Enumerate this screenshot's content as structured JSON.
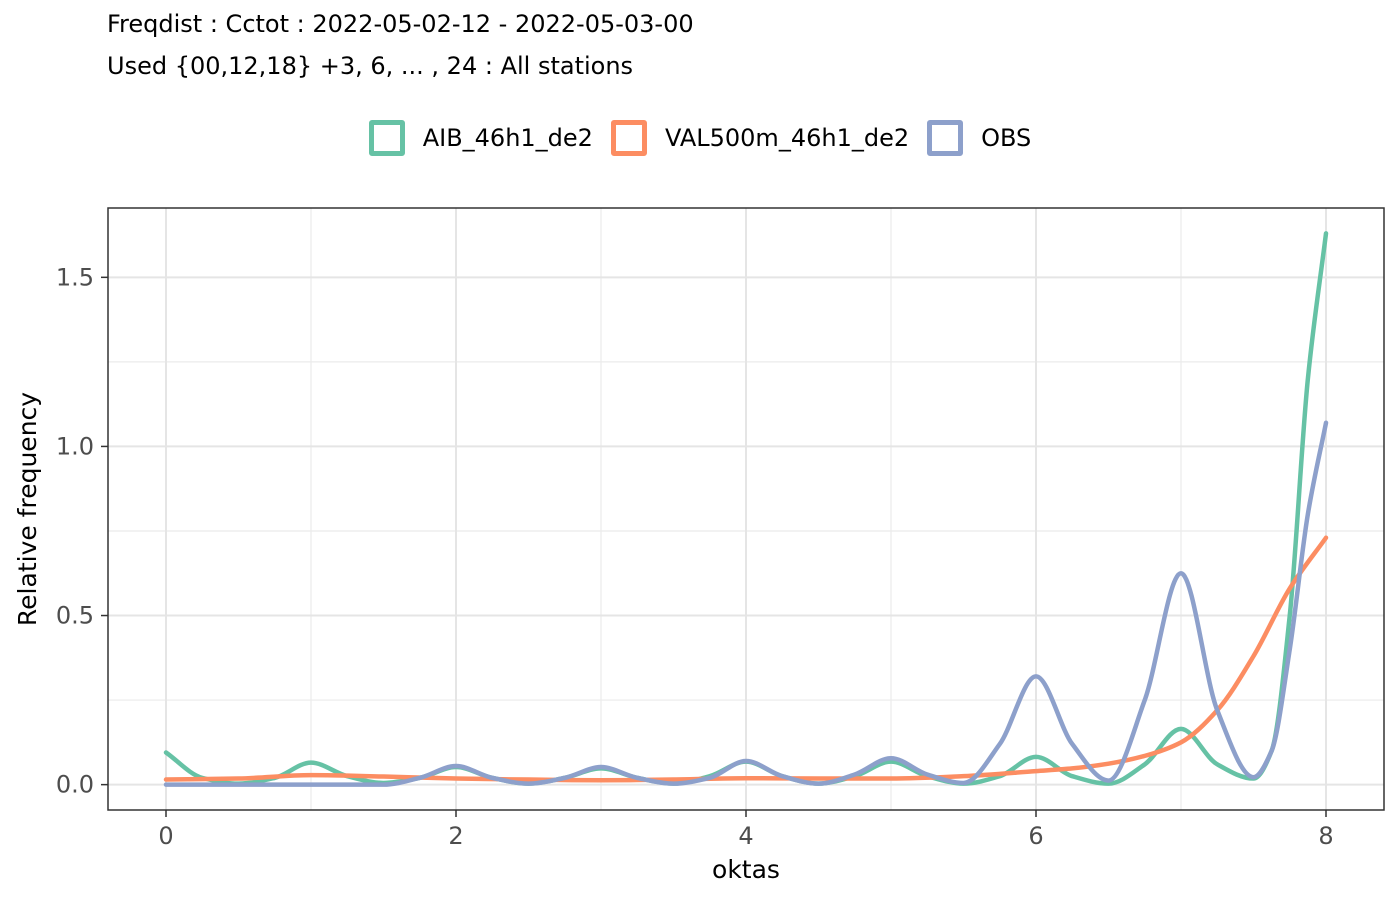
{
  "chart_data": {
    "type": "line",
    "title": "Freqdist : Cctot : 2022-05-02-12 - 2022-05-03-00",
    "subtitle": "Used {00,12,18} +3, 6, ... , 24 : All stations",
    "xlabel": "oktas",
    "ylabel": "Relative frequency",
    "xlim": [
      -0.4,
      8.4
    ],
    "ylim": [
      -0.075,
      1.705
    ],
    "xticks": [
      0,
      2,
      4,
      6,
      8
    ],
    "xtick_labels": [
      "0",
      "2",
      "4",
      "6",
      "8"
    ],
    "yticks": [
      0.0,
      0.5,
      1.0,
      1.5
    ],
    "ytick_labels": [
      "0.0",
      "0.5",
      "1.0",
      "1.5"
    ],
    "grid": true,
    "legend_position": "top",
    "series": [
      {
        "name": "AIB_46h1_de2",
        "color": "#66c2a5",
        "x": [
          0,
          0.25,
          0.5,
          0.75,
          1,
          1.25,
          1.5,
          1.75,
          2,
          2.25,
          2.5,
          2.75,
          3,
          3.25,
          3.5,
          3.75,
          4,
          4.25,
          4.5,
          4.75,
          5,
          5.25,
          5.5,
          5.75,
          6,
          6.25,
          6.5,
          6.75,
          7,
          7.25,
          7.5,
          7.625,
          7.75,
          7.875,
          8
        ],
        "y": [
          0.095,
          0.02,
          0.003,
          0.02,
          0.065,
          0.025,
          0.005,
          0.02,
          0.052,
          0.02,
          0.003,
          0.02,
          0.048,
          0.02,
          0.003,
          0.025,
          0.068,
          0.025,
          0.003,
          0.025,
          0.068,
          0.025,
          0.003,
          0.025,
          0.082,
          0.025,
          0.003,
          0.06,
          0.165,
          0.06,
          0.018,
          0.1,
          0.5,
          1.2,
          1.63
        ]
      },
      {
        "name": "VAL500m_46h1_de2",
        "color": "#fc8d62",
        "x": [
          0,
          0.5,
          1,
          1.5,
          2,
          2.5,
          3,
          3.5,
          4,
          4.5,
          5,
          5.5,
          6,
          6.25,
          6.5,
          6.75,
          7,
          7.25,
          7.5,
          7.75,
          8
        ],
        "y": [
          0.015,
          0.018,
          0.028,
          0.024,
          0.018,
          0.015,
          0.013,
          0.015,
          0.019,
          0.018,
          0.018,
          0.025,
          0.04,
          0.048,
          0.062,
          0.085,
          0.125,
          0.22,
          0.38,
          0.58,
          0.73
        ]
      },
      {
        "name": "OBS",
        "color": "#8da0cb",
        "x": [
          0,
          0.5,
          1,
          1.5,
          1.75,
          2,
          2.25,
          2.5,
          2.75,
          3,
          3.25,
          3.5,
          3.75,
          4,
          4.25,
          4.5,
          4.75,
          5,
          5.25,
          5.5,
          5.75,
          6,
          6.25,
          6.5,
          6.75,
          7,
          7.25,
          7.5,
          7.625,
          7.75,
          7.875,
          8
        ],
        "y": [
          0.0,
          0.0,
          0.0,
          0.0,
          0.02,
          0.055,
          0.02,
          0.003,
          0.02,
          0.052,
          0.02,
          0.003,
          0.02,
          0.07,
          0.025,
          0.003,
          0.03,
          0.078,
          0.03,
          0.005,
          0.12,
          0.32,
          0.12,
          0.012,
          0.25,
          0.625,
          0.22,
          0.022,
          0.1,
          0.4,
          0.8,
          1.07
        ]
      }
    ]
  }
}
